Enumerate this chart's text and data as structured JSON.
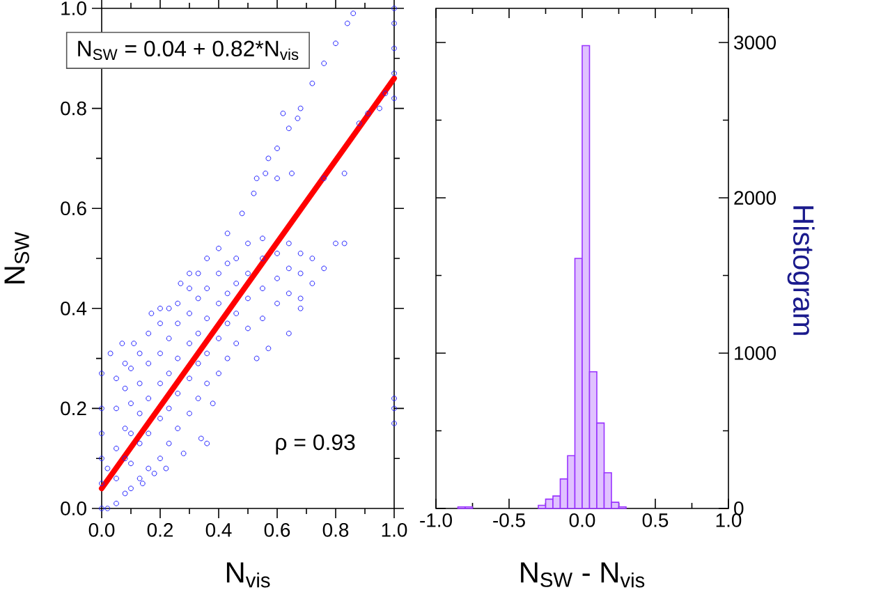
{
  "chart_data": [
    {
      "type": "scatter",
      "xlabel": "N$_{vis}$",
      "ylabel": "N$_{SW}$",
      "annotations": [
        "N$_{SW}$ = 0.04 + 0.82*N$_{vis}$",
        "ρ = 0.93"
      ],
      "xlim": [
        0,
        1
      ],
      "ylim": [
        0,
        1
      ],
      "xticks": [
        {
          "value": 0,
          "label": "0.0"
        },
        {
          "value": 0.1,
          "label": null
        },
        {
          "value": 0.2,
          "label": "0.2"
        },
        {
          "value": 0.3,
          "label": null
        },
        {
          "value": 0.4,
          "label": "0.4"
        },
        {
          "value": 0.5,
          "label": null
        },
        {
          "value": 0.6,
          "label": "0.6"
        },
        {
          "value": 0.7,
          "label": null
        },
        {
          "value": 0.8,
          "label": "0.8"
        },
        {
          "value": 0.9,
          "label": null
        },
        {
          "value": 1,
          "label": "1.0"
        }
      ],
      "yticks": [
        {
          "value": 0,
          "label": "0.0"
        },
        {
          "value": 0.1,
          "label": null
        },
        {
          "value": 0.2,
          "label": "0.2"
        },
        {
          "value": 0.3,
          "label": null
        },
        {
          "value": 0.4,
          "label": "0.4"
        },
        {
          "value": 0.5,
          "label": null
        },
        {
          "value": 0.6,
          "label": "0.6"
        },
        {
          "value": 0.7,
          "label": null
        },
        {
          "value": 0.8,
          "label": "0.8"
        },
        {
          "value": 0.9,
          "label": null
        },
        {
          "value": 1,
          "label": "1.0"
        }
      ],
      "marker": "circle",
      "series": [
        {
          "type": "scatter",
          "color": "#2020ff",
          "x": [
            0,
            0,
            0,
            0,
            0,
            0,
            0.02,
            0.02,
            0.05,
            0.05,
            0.05,
            0.05,
            0.05,
            0.08,
            0.08,
            0.08,
            0.08,
            0.08,
            0.1,
            0.1,
            0.1,
            0.1,
            0.1,
            0.13,
            0.13,
            0.13,
            0.13,
            0.13,
            0.16,
            0.16,
            0.16,
            0.16,
            0.16,
            0.2,
            0.2,
            0.2,
            0.2,
            0.2,
            0.23,
            0.23,
            0.23,
            0.23,
            0.23,
            0.26,
            0.26,
            0.26,
            0.26,
            0.26,
            0.3,
            0.3,
            0.3,
            0.3,
            0.3,
            0.33,
            0.33,
            0.33,
            0.33,
            0.33,
            0.36,
            0.36,
            0.36,
            0.36,
            0.36,
            0.4,
            0.4,
            0.4,
            0.4,
            0.4,
            0.43,
            0.43,
            0.43,
            0.43,
            0.43,
            0.46,
            0.46,
            0.46,
            0.46,
            0.5,
            0.5,
            0.5,
            0.5,
            0.55,
            0.55,
            0.55,
            0.55,
            0.6,
            0.6,
            0.6,
            0.64,
            0.64,
            0.64,
            0.68,
            0.68,
            0.68,
            0.72,
            0.72,
            0.48,
            0.52,
            0.56,
            0.6,
            0.64,
            0.68,
            0.72,
            0.76,
            0.8,
            0.84,
            0.86,
            0.53,
            0.57,
            0.62,
            0.67,
            0.6,
            0.65,
            0.76,
            0.83,
            0.88,
            0.91,
            0.95,
            0.97,
            0.8,
            0.83,
            0.76,
            1,
            1,
            1,
            1,
            1,
            1,
            1,
            1,
            0.28,
            0.34,
            0.36,
            0.38,
            0.53,
            0.57,
            0.64,
            0.68,
            0.22,
            0.18,
            0.14,
            0.03,
            0.07,
            0.17,
            0.2,
            0.11,
            0.27,
            0.3
          ],
          "values": [
            0,
            0.05,
            0.1,
            0.15,
            0.2,
            0.27,
            0,
            0.08,
            0.01,
            0.06,
            0.12,
            0.2,
            0.26,
            0.03,
            0.1,
            0.16,
            0.24,
            0.29,
            0.04,
            0.09,
            0.15,
            0.21,
            0.28,
            0.06,
            0.13,
            0.19,
            0.25,
            0.31,
            0.08,
            0.15,
            0.22,
            0.29,
            0.35,
            0.1,
            0.18,
            0.25,
            0.31,
            0.37,
            0.13,
            0.2,
            0.27,
            0.34,
            0.4,
            0.16,
            0.23,
            0.3,
            0.37,
            0.41,
            0.19,
            0.26,
            0.33,
            0.39,
            0.44,
            0.22,
            0.29,
            0.35,
            0.42,
            0.47,
            0.25,
            0.31,
            0.38,
            0.44,
            0.5,
            0.27,
            0.34,
            0.41,
            0.47,
            0.52,
            0.3,
            0.37,
            0.43,
            0.49,
            0.55,
            0.33,
            0.39,
            0.45,
            0.5,
            0.36,
            0.42,
            0.47,
            0.53,
            0.38,
            0.44,
            0.5,
            0.54,
            0.41,
            0.46,
            0.51,
            0.43,
            0.48,
            0.53,
            0.42,
            0.47,
            0.51,
            0.45,
            0.5,
            0.59,
            0.63,
            0.67,
            0.72,
            0.76,
            0.8,
            0.85,
            0.89,
            0.93,
            0.97,
            0.99,
            0.66,
            0.7,
            0.79,
            0.78,
            0.66,
            0.67,
            0.66,
            0.67,
            0.77,
            0.79,
            0.8,
            0.83,
            0.53,
            0.53,
            0.48,
            0.82,
            0.87,
            0.92,
            0.97,
            1,
            0.17,
            0.2,
            0.22,
            0.11,
            0.14,
            0.13,
            0.21,
            0.3,
            0.32,
            0.35,
            0.4,
            0.08,
            0.07,
            0.05,
            0.31,
            0.33,
            0.39,
            0.4,
            0.33,
            0.45,
            0.47
          ]
        },
        {
          "type": "line",
          "color": "#ff0000",
          "marker": "none",
          "x": [
            0,
            1
          ],
          "values": [
            0.04,
            0.86
          ]
        }
      ]
    },
    {
      "type": "histogram",
      "xlabel": "N$_{SW}$ - N$_{vis}$",
      "ylabel": "Histogram",
      "xlim": [
        -1,
        1
      ],
      "ylim": [
        0,
        3220
      ],
      "xticks": [
        {
          "value": -1,
          "label": "-1.0"
        },
        {
          "value": -0.75,
          "label": null
        },
        {
          "value": -0.5,
          "label": "-0.5"
        },
        {
          "value": -0.25,
          "label": null
        },
        {
          "value": 0,
          "label": "0.0"
        },
        {
          "value": 0.25,
          "label": null
        },
        {
          "value": 0.5,
          "label": "0.5"
        },
        {
          "value": 0.75,
          "label": null
        },
        {
          "value": 1,
          "label": "1.0"
        }
      ],
      "yticks": [
        0,
        {
          "value": 500,
          "label": null
        },
        1000,
        {
          "value": 1500,
          "label": null
        },
        2000,
        {
          "value": 2500,
          "label": null
        },
        3000
      ],
      "color": "#9933ff",
      "bins": [
        -0.85,
        -0.8,
        -0.75,
        -0.7,
        -0.65,
        -0.6,
        -0.55,
        -0.5,
        -0.45,
        -0.4,
        -0.35,
        -0.3,
        -0.25,
        -0.2,
        -0.15,
        -0.1,
        -0.05,
        0,
        0.05,
        0.1,
        0.15,
        0.2,
        0.25,
        0.3
      ],
      "values": [
        10,
        10,
        0,
        0,
        0,
        0,
        0,
        0,
        0,
        0,
        0,
        20,
        60,
        80,
        190,
        340,
        1610,
        2980,
        880,
        550,
        230,
        40,
        10
      ]
    }
  ]
}
